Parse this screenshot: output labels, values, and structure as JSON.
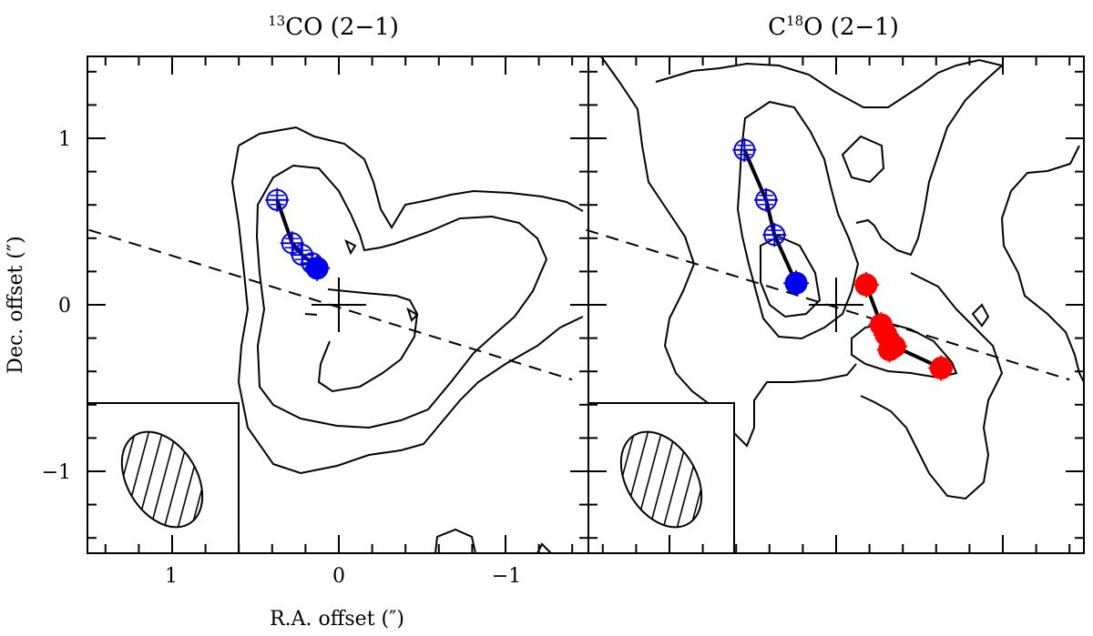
{
  "chart_data": [
    {
      "type": "scatter",
      "title": "13CO (2-1)",
      "title_parts": {
        "sup": "13",
        "main": "CO (2−1)"
      },
      "xlabel": "R.A. offset (″)",
      "ylabel": "Dec. offset (″)",
      "xlim": [
        1.5,
        -1.4
      ],
      "ylim": [
        -1.5,
        1.5
      ],
      "x_tick_labels": [
        "1",
        "0",
        "−1"
      ],
      "y_tick_labels": [
        "1",
        "0",
        "−1"
      ],
      "series": [
        {
          "color": "#0000ee",
          "points": [
            {
              "x": 0.37,
              "y": 0.63,
              "filled": false
            },
            {
              "x": 0.28,
              "y": 0.37,
              "filled": false
            },
            {
              "x": 0.22,
              "y": 0.3,
              "filled": false
            },
            {
              "x": 0.16,
              "y": 0.25,
              "filled": false
            },
            {
              "x": 0.13,
              "y": 0.22,
              "filled": true
            }
          ]
        }
      ],
      "reference_line": {
        "from": [
          1.5,
          0.45
        ],
        "to": [
          -1.4,
          -0.45
        ]
      }
    },
    {
      "type": "scatter",
      "title": "C18O (2-1)",
      "title_parts": {
        "pre": "C",
        "sup": "18",
        "main": "O (2−1)"
      },
      "xlim": [
        1.5,
        -1.4
      ],
      "ylim": [
        -1.5,
        1.5
      ],
      "series": [
        {
          "color": "#0000ee",
          "points": [
            {
              "x": 0.55,
              "y": 0.93,
              "filled": false
            },
            {
              "x": 0.42,
              "y": 0.63,
              "filled": false
            },
            {
              "x": 0.37,
              "y": 0.42,
              "filled": false
            },
            {
              "x": 0.24,
              "y": 0.13,
              "filled": true
            }
          ]
        },
        {
          "color": "#ff0000",
          "points": [
            {
              "x": -0.18,
              "y": 0.12
            },
            {
              "x": -0.27,
              "y": -0.12
            },
            {
              "x": -0.3,
              "y": -0.18
            },
            {
              "x": -0.32,
              "y": -0.27
            },
            {
              "x": -0.35,
              "y": -0.25
            },
            {
              "x": -0.63,
              "y": -0.38
            }
          ]
        }
      ],
      "reference_line": {
        "from": [
          1.5,
          0.45
        ],
        "to": [
          -1.4,
          -0.45
        ]
      }
    }
  ]
}
